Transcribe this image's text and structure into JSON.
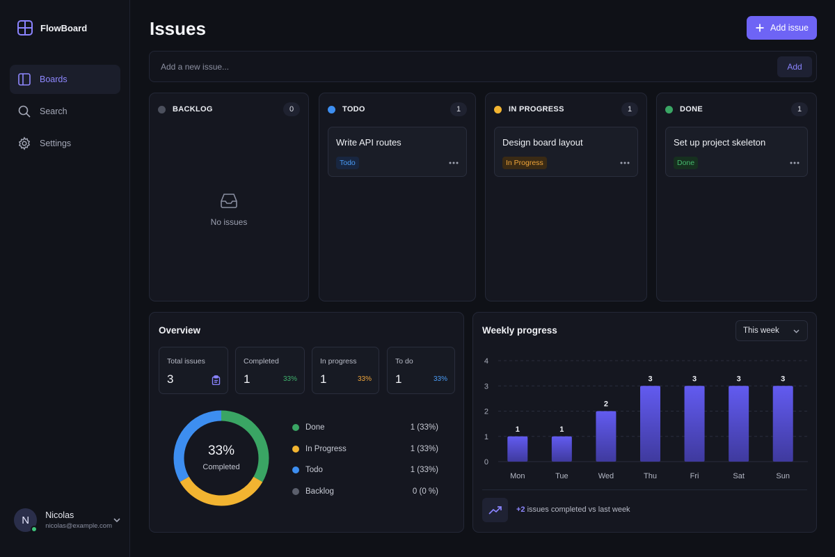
{
  "app": {
    "name": "FlowBoard",
    "accent": "#6e64f5"
  },
  "sidebar": {
    "items": [
      {
        "label": "Boards",
        "icon": "boards-icon",
        "active": true
      },
      {
        "label": "Search",
        "icon": "search-icon",
        "active": false
      },
      {
        "label": "Settings",
        "icon": "gear-icon",
        "active": false
      }
    ]
  },
  "user": {
    "initial": "N",
    "name": "Nicolas",
    "email": "nicolas@example.com",
    "status": "online"
  },
  "header": {
    "title": "Issues",
    "add_button": "Add issue"
  },
  "new_issue": {
    "placeholder": "Add a new issue...",
    "value": "",
    "button": "Add"
  },
  "columns": [
    {
      "title": "BACKLOG",
      "count": "0",
      "color": "#4c505d",
      "empty_text": "No issues",
      "cards": []
    },
    {
      "title": "TODO",
      "count": "1",
      "color": "#3d8ef0",
      "cards": [
        {
          "title": "Write API routes",
          "tag": "Todo",
          "tag_color": "#4a9bf5",
          "tag_bg": "#182640"
        }
      ]
    },
    {
      "title": "IN PROGRESS",
      "count": "1",
      "color": "#f2b431",
      "cards": [
        {
          "title": "Design board layout",
          "tag": "In Progress",
          "tag_color": "#f0a53a",
          "tag_bg": "#3a2a14"
        }
      ]
    },
    {
      "title": "DONE",
      "count": "1",
      "color": "#3aa564",
      "cards": [
        {
          "title": "Set up project skeleton",
          "tag": "Done",
          "tag_color": "#46b96e",
          "tag_bg": "#16301f"
        }
      ]
    }
  ],
  "overview": {
    "title": "Overview",
    "stats": [
      {
        "label": "Total issues",
        "value": "3",
        "aux": "",
        "aux_icon": "clipboard-icon"
      },
      {
        "label": "Completed",
        "value": "1",
        "aux": "33%",
        "aux_color": "#3fb26d"
      },
      {
        "label": "In progress",
        "value": "1",
        "aux": "33%",
        "aux_color": "#f0a53a"
      },
      {
        "label": "To do",
        "value": "1",
        "aux": "33%",
        "aux_color": "#4a9bf5"
      }
    ],
    "donut": {
      "center_value": "33%",
      "center_label": "Completed",
      "segments": [
        {
          "name": "Done",
          "fraction": 0.3333,
          "color": "#3aa564"
        },
        {
          "name": "In Progress",
          "fraction": 0.3333,
          "color": "#f2b431"
        },
        {
          "name": "Todo",
          "fraction": 0.3334,
          "color": "#3d8ef0"
        }
      ]
    },
    "legend": [
      {
        "name": "Done",
        "value": "1 (33%)",
        "color": "#3aa564"
      },
      {
        "name": "In Progress",
        "value": "1 (33%)",
        "color": "#f2b431"
      },
      {
        "name": "Todo",
        "value": "1 (33%)",
        "color": "#3d8ef0"
      },
      {
        "name": "Backlog",
        "value": "0 (0 %)",
        "color": "#5b5f6c"
      }
    ]
  },
  "weekly": {
    "title": "Weekly progress",
    "range_select": "This week",
    "footer": {
      "delta": "+2",
      "text": "issues completed vs last week"
    }
  },
  "chart_data": {
    "type": "bar",
    "categories": [
      "Mon",
      "Tue",
      "Wed",
      "Thu",
      "Fri",
      "Sat",
      "Sun"
    ],
    "values": [
      1,
      1,
      2,
      3,
      3,
      3,
      3
    ],
    "yticks": [
      0,
      1,
      2,
      3,
      4
    ],
    "ylim": [
      0,
      4
    ],
    "grid": true,
    "data_labels": true,
    "bar_color": "#5b55e6"
  }
}
